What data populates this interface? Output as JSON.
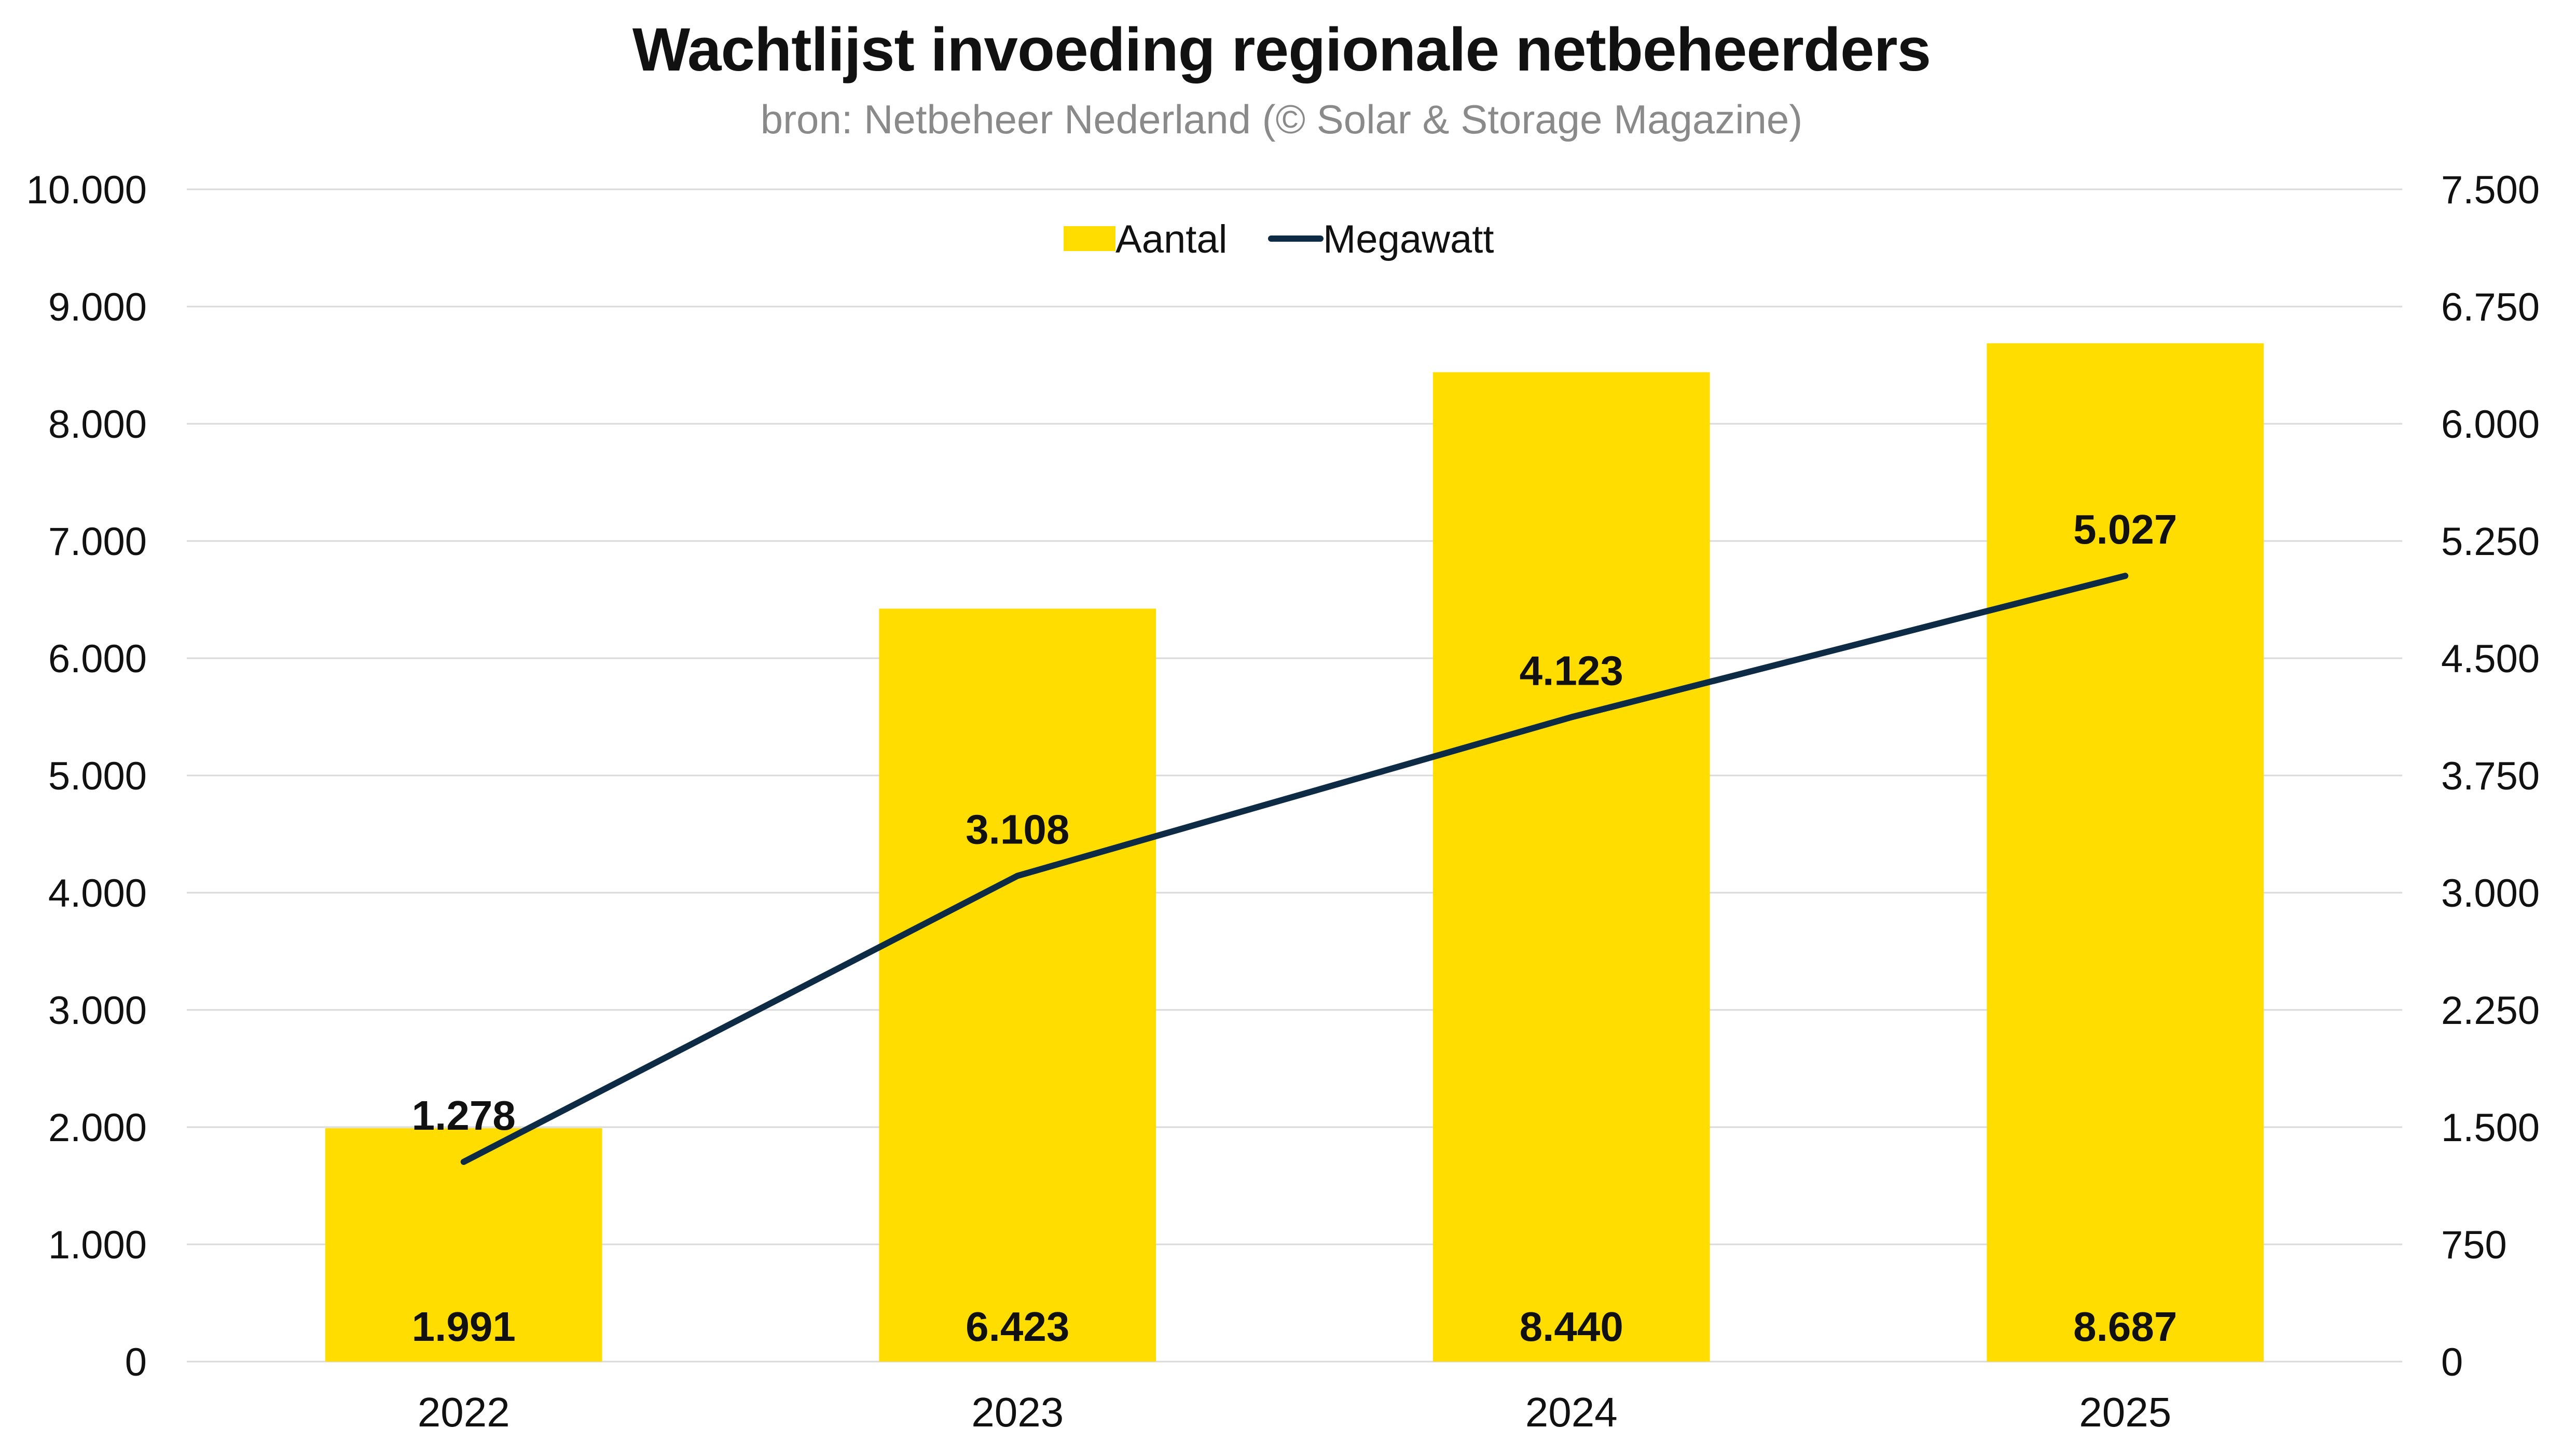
{
  "chart_data": {
    "type": "bar",
    "title": "Wachtlijst invoeding regionale netbeheerders",
    "subtitle": "bron: Netbeheer Nederland (© Solar & Storage Magazine)",
    "categories": [
      "2022",
      "2023",
      "2024",
      "2025"
    ],
    "series": [
      {
        "name": "Aantal",
        "type": "bar",
        "axis": "left",
        "color": "#FFDD00",
        "values": [
          1991,
          6423,
          8440,
          8687
        ],
        "labels": [
          "1.991",
          "6.423",
          "8.440",
          "8.687"
        ]
      },
      {
        "name": "Megawatt",
        "type": "line",
        "axis": "right",
        "color": "#0D2B45",
        "values": [
          1278,
          3108,
          4123,
          5027
        ],
        "labels": [
          "1.278",
          "3.108",
          "4.123",
          "5.027"
        ]
      }
    ],
    "y_left": {
      "range": [
        0,
        10000
      ],
      "ticks": [
        0,
        1000,
        2000,
        3000,
        4000,
        5000,
        6000,
        7000,
        8000,
        9000,
        10000
      ],
      "tick_labels": [
        "0",
        "1.000",
        "2.000",
        "3.000",
        "4.000",
        "5.000",
        "6.000",
        "7.000",
        "8.000",
        "9.000",
        "10.000"
      ]
    },
    "y_right": {
      "range": [
        0,
        7500
      ],
      "ticks": [
        0,
        750,
        1500,
        2250,
        3000,
        3750,
        4500,
        5250,
        6000,
        6750,
        7500
      ],
      "tick_labels": [
        "0",
        "750",
        "1.500",
        "2.250",
        "3.000",
        "3.750",
        "4.500",
        "5.250",
        "6.000",
        "6.750",
        "7.500"
      ]
    },
    "grid": true,
    "legend_position": "top-center"
  }
}
